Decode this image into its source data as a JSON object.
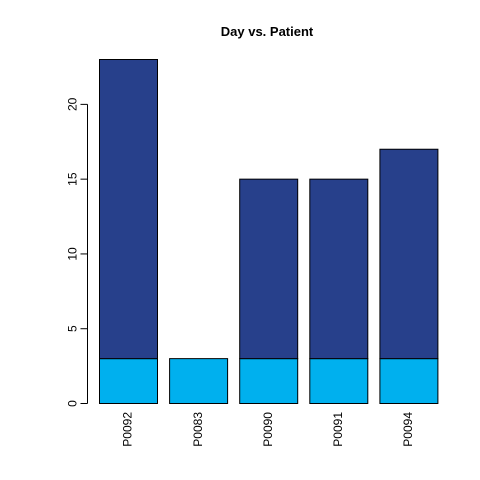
{
  "chart_data": {
    "type": "bar",
    "stacked": true,
    "title": "Day vs. Patient",
    "xlabel": "",
    "ylabel": "",
    "categories": [
      "P0092",
      "P0083",
      "P0090",
      "P0091",
      "P0094"
    ],
    "series": [
      {
        "values": [
          3,
          3,
          3,
          3,
          3
        ],
        "color": "#00B0EE"
      },
      {
        "values": [
          20,
          0,
          12,
          12,
          14
        ],
        "color": "#27408B"
      }
    ],
    "ylim": [
      0,
      23
    ],
    "yticks": [
      0,
      5,
      10,
      15,
      20
    ],
    "grid": false,
    "legend": "none"
  }
}
